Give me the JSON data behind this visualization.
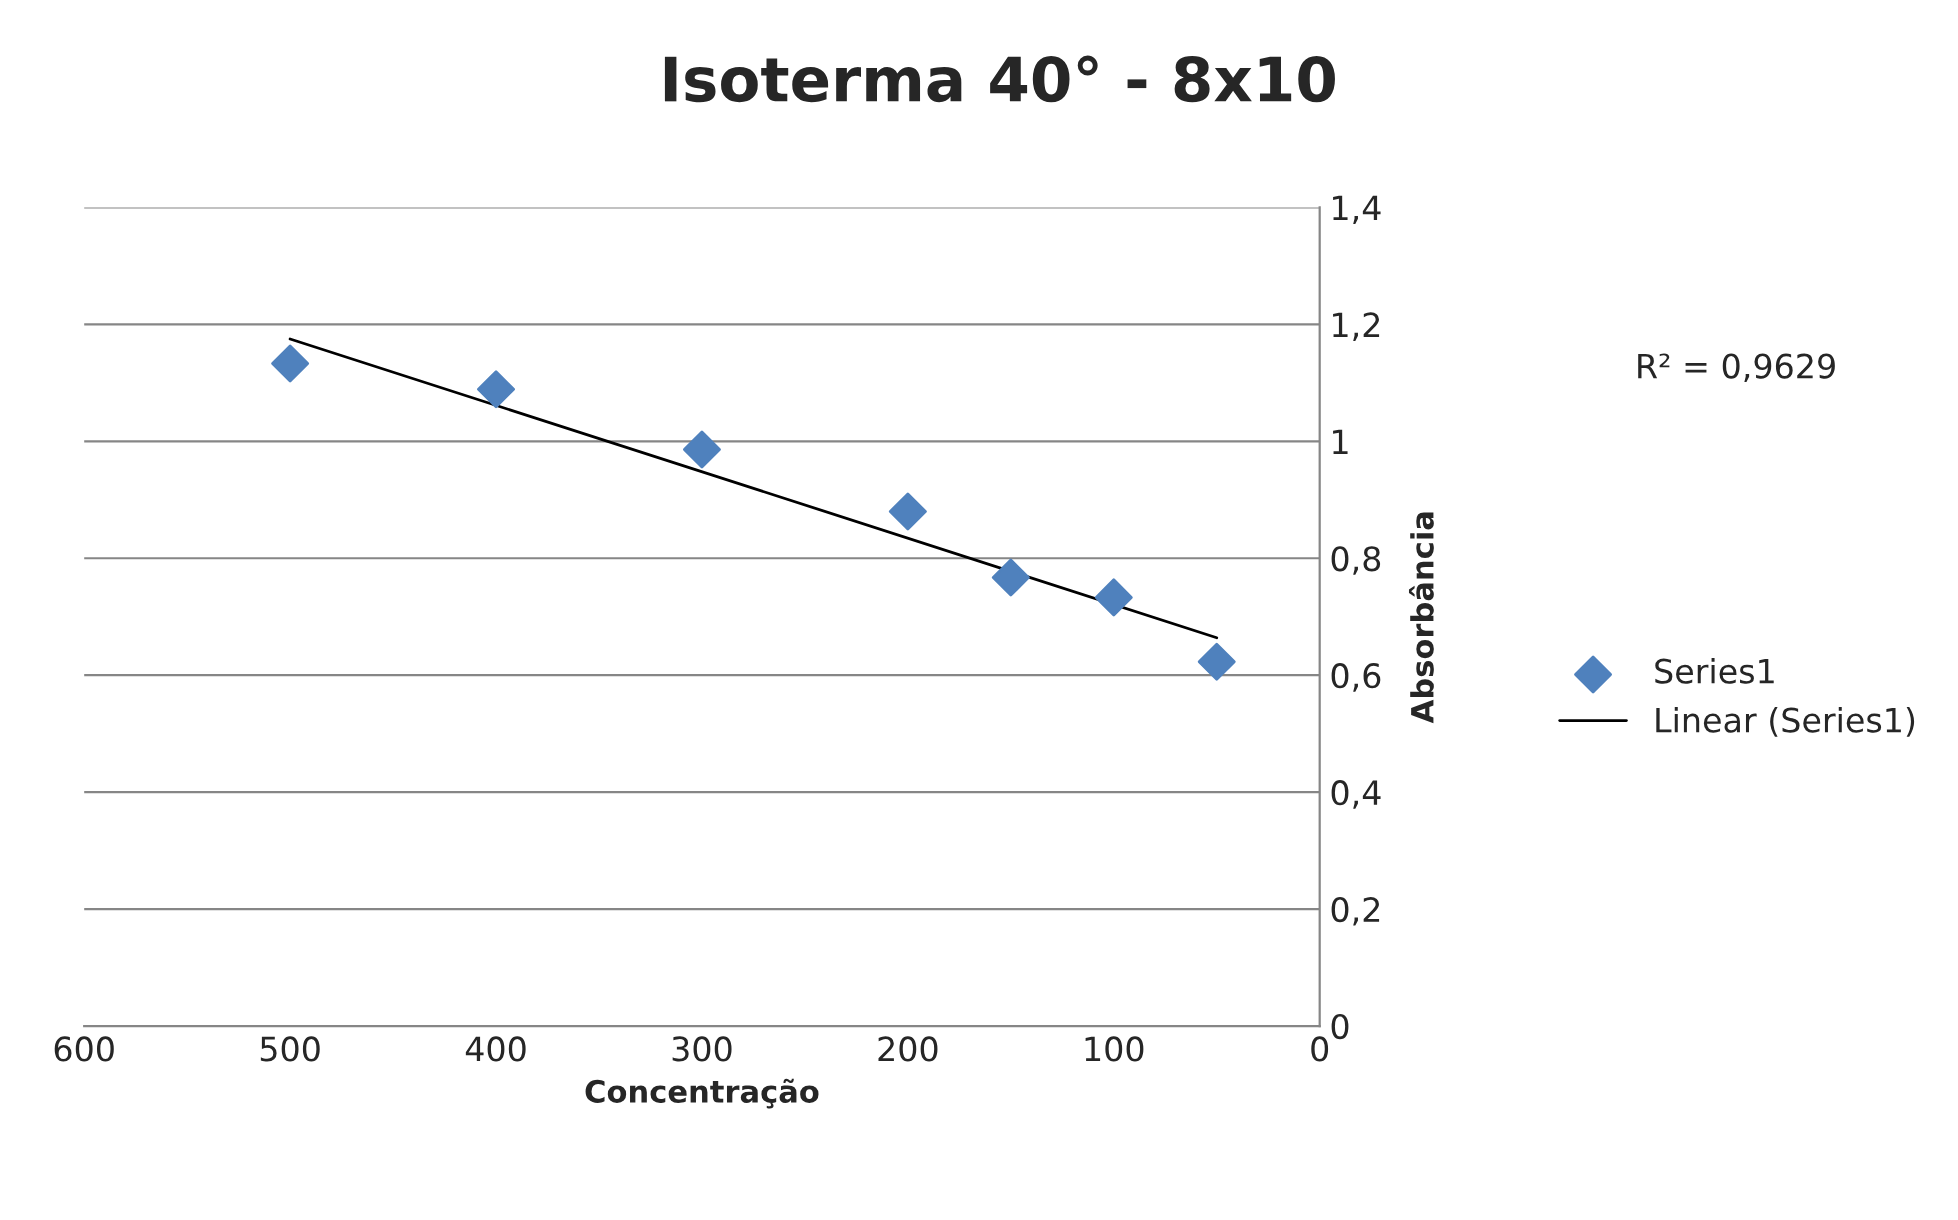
{
  "chart_data": {
    "type": "scatter",
    "title": "Isoterma 40° - 8x10",
    "xlabel": "Concentração",
    "ylabel": "Absorbância",
    "x": [
      500,
      400,
      300,
      200,
      150,
      100,
      50
    ],
    "series": [
      {
        "name": "Series1",
        "color": "#4f81bd",
        "marker": "diamond",
        "values": [
          1.133,
          1.089,
          0.986,
          0.88,
          0.767,
          0.733,
          0.623
        ]
      },
      {
        "name": "Linear (Series1)",
        "type": "line",
        "color": "#000000",
        "marker": "none",
        "line_style": "solid",
        "x": [
          500,
          50
        ],
        "values": [
          1.175,
          0.664
        ]
      }
    ],
    "xlim": [
      600,
      0
    ],
    "xticks": [
      600,
      500,
      400,
      300,
      200,
      100,
      0
    ],
    "ylim": [
      0,
      1.4
    ],
    "yticks": [
      0,
      {
        "value": 0.2,
        "label": "0,2"
      },
      {
        "value": 0.4,
        "label": "0,4"
      },
      {
        "value": 0.6,
        "label": "0,6"
      },
      {
        "value": 0.8,
        "label": "0,8"
      },
      1,
      {
        "value": 1.2,
        "label": "1,2"
      },
      {
        "value": 1.4,
        "label": "1,4"
      }
    ],
    "annotations": [
      "R² = 0,9629"
    ],
    "grid": "y",
    "legend": "right"
  }
}
